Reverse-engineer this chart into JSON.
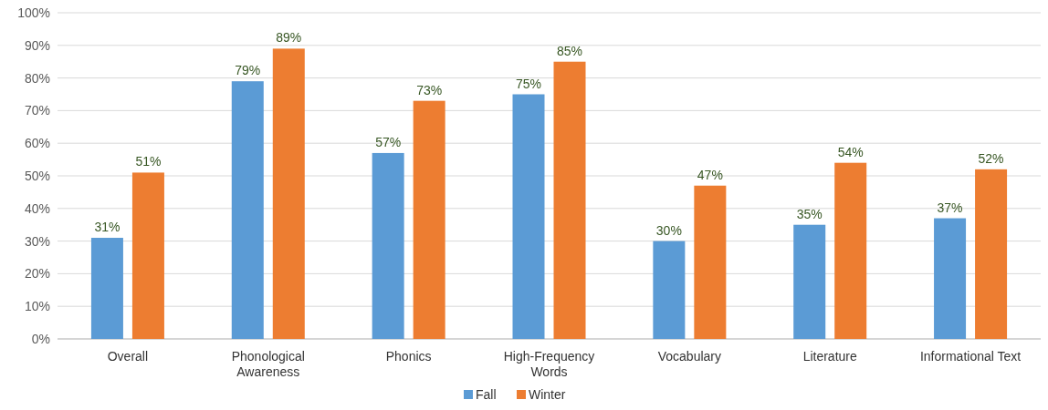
{
  "chart_data": {
    "type": "bar",
    "categories": [
      "Overall",
      "Phonological Awareness",
      "Phonics",
      "High-Frequency Words",
      "Vocabulary",
      "Literature",
      "Informational Text"
    ],
    "series": [
      {
        "name": "Fall",
        "color": "#5b9bd5",
        "values": [
          31,
          79,
          57,
          75,
          30,
          35,
          37
        ],
        "value_labels": [
          "31%",
          "79%",
          "57%",
          "75%",
          "30%",
          "35%",
          "37%"
        ]
      },
      {
        "name": "Winter",
        "color": "#ed7d31",
        "values": [
          51,
          89,
          73,
          85,
          47,
          54,
          52
        ],
        "value_labels": [
          "51%",
          "89%",
          "73%",
          "85%",
          "47%",
          "54%",
          "52%"
        ]
      }
    ],
    "ylim": [
      0,
      100
    ],
    "yticks": [
      {
        "value": 0,
        "label": "0%"
      },
      {
        "value": 10,
        "label": "10%"
      },
      {
        "value": 20,
        "label": "20%"
      },
      {
        "value": 30,
        "label": "30%"
      },
      {
        "value": 40,
        "label": "40%"
      },
      {
        "value": 50,
        "label": "50%"
      },
      {
        "value": 60,
        "label": "60%"
      },
      {
        "value": 70,
        "label": "70%"
      },
      {
        "value": 80,
        "label": "80%"
      },
      {
        "value": 90,
        "label": "90%"
      },
      {
        "value": 100,
        "label": "100%"
      }
    ],
    "grid": "y",
    "legend": "bottom"
  }
}
